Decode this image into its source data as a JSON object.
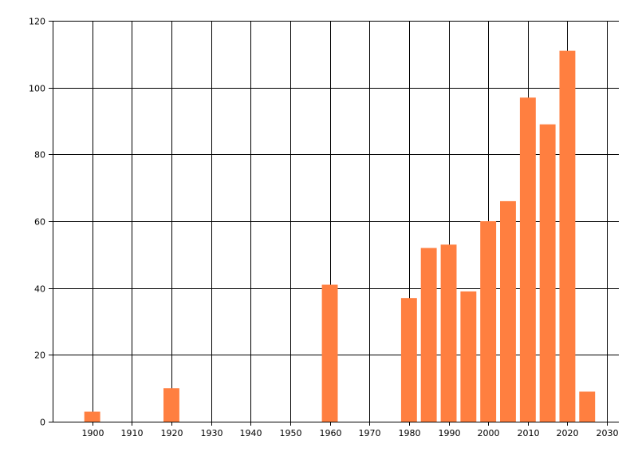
{
  "chart_data": {
    "type": "bar",
    "title": "",
    "xlabel": "",
    "ylabel": "",
    "x": [
      1900,
      1920,
      1960,
      1980,
      1985,
      1990,
      1995,
      2000,
      2005,
      2010,
      2015,
      2020,
      2025
    ],
    "values": [
      3,
      10,
      41,
      37,
      52,
      53,
      39,
      60,
      66,
      97,
      89,
      111,
      9
    ],
    "xlim": [
      1890,
      2033
    ],
    "ylim": [
      0,
      120
    ],
    "xticks": [
      1900,
      1910,
      1920,
      1930,
      1940,
      1950,
      1960,
      1970,
      1980,
      1990,
      2000,
      2010,
      2020,
      2030
    ],
    "yticks": [
      0,
      20,
      40,
      60,
      80,
      100,
      120
    ],
    "bar_width_years": 4,
    "grid": true,
    "legend": "none",
    "colors": {
      "bar": "#FF7F40",
      "grid": "#000000",
      "axis": "#000000",
      "background": "#FFFFFF"
    }
  }
}
